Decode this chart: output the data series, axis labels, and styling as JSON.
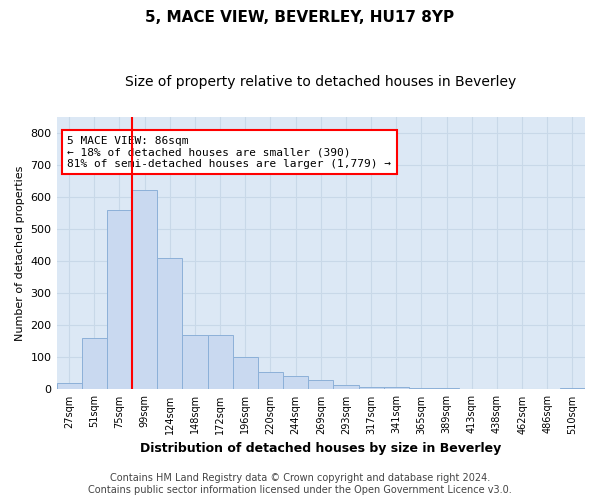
{
  "title": "5, MACE VIEW, BEVERLEY, HU17 8YP",
  "subtitle": "Size of property relative to detached houses in Beverley",
  "xlabel": "Distribution of detached houses by size in Beverley",
  "ylabel": "Number of detached properties",
  "footer_line1": "Contains HM Land Registry data © Crown copyright and database right 2024.",
  "footer_line2": "Contains public sector information licensed under the Open Government Licence v3.0.",
  "annotation_line1": "5 MACE VIEW: 86sqm",
  "annotation_line2": "← 18% of detached houses are smaller (390)",
  "annotation_line3": "81% of semi-detached houses are larger (1,779) →",
  "bar_labels": [
    "27sqm",
    "51sqm",
    "75sqm",
    "99sqm",
    "124sqm",
    "148sqm",
    "172sqm",
    "196sqm",
    "220sqm",
    "244sqm",
    "269sqm",
    "293sqm",
    "317sqm",
    "341sqm",
    "365sqm",
    "389sqm",
    "413sqm",
    "438sqm",
    "462sqm",
    "486sqm",
    "510sqm"
  ],
  "bar_values": [
    20,
    160,
    560,
    620,
    410,
    170,
    170,
    100,
    55,
    42,
    30,
    13,
    9,
    8,
    4,
    4,
    1,
    0,
    0,
    0,
    6
  ],
  "bar_color": "#c9d9f0",
  "bar_edge_color": "#8cb0d8",
  "red_line_x": 2.5,
  "ylim": [
    0,
    850
  ],
  "yticks": [
    0,
    100,
    200,
    300,
    400,
    500,
    600,
    700,
    800
  ],
  "grid_color": "#c8d8e8",
  "background_color": "#ffffff",
  "plot_bg_color": "#dce8f5",
  "title_fontsize": 11,
  "subtitle_fontsize": 10,
  "annotation_fontsize": 8,
  "footer_fontsize": 7,
  "ylabel_fontsize": 8,
  "xlabel_fontsize": 9
}
